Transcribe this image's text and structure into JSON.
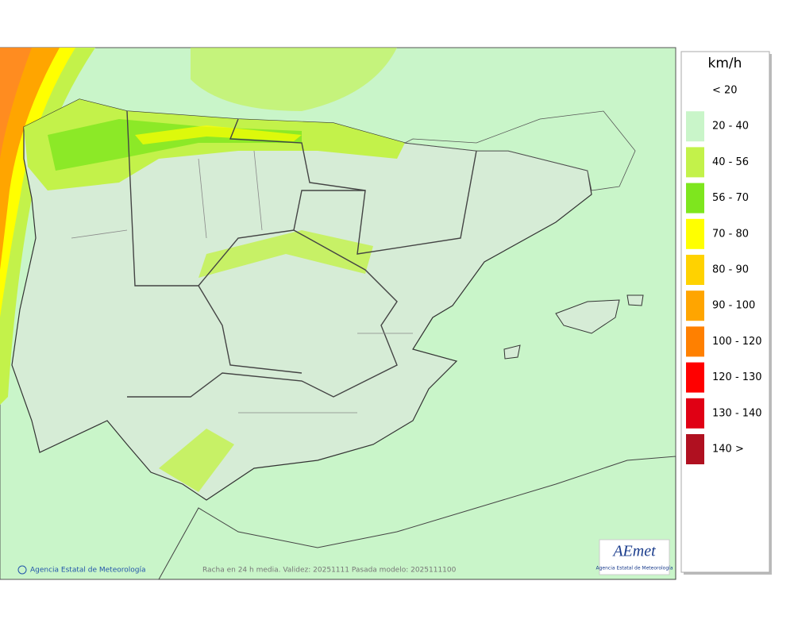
{
  "map": {
    "legend": {
      "title": "km/h",
      "items": [
        {
          "label": "< 20"
        },
        {
          "label": "20 - 40",
          "color": "#c9f5c9"
        },
        {
          "label": "40 - 56",
          "color": "#c3f24a"
        },
        {
          "label": "56 - 70",
          "color": "#7ee61e"
        },
        {
          "label": "70 - 80",
          "color": "#ffff00"
        },
        {
          "label": "80 - 90",
          "color": "#ffd200"
        },
        {
          "label": "90 - 100",
          "color": "#ffa500"
        },
        {
          "label": "100 - 120",
          "color": "#ff8000"
        },
        {
          "label": "120 - 130",
          "color": "#ff0000"
        },
        {
          "label": "130 - 140",
          "color": "#e00014"
        },
        {
          "label": "140 >",
          "color": "#b01020"
        }
      ]
    },
    "credit": "Agencia Estatal de Meteorología",
    "caption": "Racha en 24 h media. Validez: 20251111 Pasada modelo: 2025111100",
    "logo": {
      "name": "AEmet",
      "subtitle": "Agencia Estatal de Meteorología"
    }
  }
}
